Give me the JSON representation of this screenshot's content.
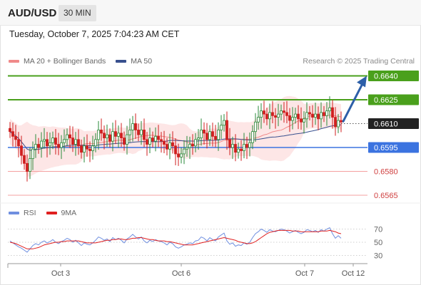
{
  "header": {
    "symbol": "AUD/USD",
    "timeframe": "30 MIN"
  },
  "timestamp": "Tuesday, October 7, 2025 7:04:23 AM CET",
  "legend": {
    "bb_label": "MA 20 + Bollinger Bands",
    "ma50_label": "MA 50",
    "credit": "Research © 2025 Trading Central"
  },
  "rsi_legend": {
    "rsi_label": "RSI",
    "ma_label": "9MA"
  },
  "colors": {
    "up": "#2a8a3a",
    "down": "#d01f1f",
    "candle_body_up": "#ffffff",
    "resistance": "#4aa01c",
    "support": "#3b73e0",
    "minor_support": "#f5a0a0",
    "current": "#222222",
    "arrow": "#2d5fa8",
    "bb_fill": "#fde2e2",
    "ma20": "#f08a8a",
    "ma50": "#38508e",
    "rsi": "#6f8fe0",
    "rsi_ma": "#e02020"
  },
  "chart_data": [
    {
      "type": "candlestick",
      "title": "AUD/USD 30 MIN",
      "y_range": [
        0.656,
        0.6645
      ],
      "x_ticks": [
        "Oct 3",
        "Oct 6",
        "Oct 7",
        "Oct 12"
      ],
      "price_levels": [
        {
          "label": "0.6640",
          "value": 0.664,
          "kind": "resistance"
        },
        {
          "label": "0.6625",
          "value": 0.6625,
          "kind": "resistance"
        },
        {
          "label": "0.6610",
          "value": 0.661,
          "kind": "current"
        },
        {
          "label": "0.6595",
          "value": 0.6595,
          "kind": "support"
        },
        {
          "label": "0.6580",
          "value": 0.658,
          "kind": "minor_support"
        },
        {
          "label": "0.6565",
          "value": 0.6565,
          "kind": "minor_support"
        }
      ],
      "forecast_target": 0.664,
      "closes": [
        0.6605,
        0.6602,
        0.66,
        0.6596,
        0.659,
        0.6585,
        0.658,
        0.6588,
        0.6594,
        0.6597,
        0.6595,
        0.6599,
        0.66,
        0.6596,
        0.6598,
        0.6601,
        0.6597,
        0.6595,
        0.6598,
        0.66,
        0.6603,
        0.6601,
        0.6597,
        0.66,
        0.6596,
        0.6592,
        0.6596,
        0.6594,
        0.6593,
        0.6596,
        0.66,
        0.6606,
        0.6604,
        0.6601,
        0.6603,
        0.6599,
        0.6605,
        0.6602,
        0.6604,
        0.6601,
        0.6597,
        0.6603,
        0.6606,
        0.661,
        0.6606,
        0.6603,
        0.6606,
        0.66,
        0.6597,
        0.6601,
        0.6599,
        0.6602,
        0.66,
        0.6599,
        0.6597,
        0.6594,
        0.6598,
        0.6596,
        0.6591,
        0.6589,
        0.6591,
        0.6594,
        0.6595,
        0.6597,
        0.6596,
        0.66,
        0.6601,
        0.6606,
        0.6604,
        0.66,
        0.6605,
        0.6602,
        0.66,
        0.6606,
        0.6609,
        0.6612,
        0.66,
        0.6595,
        0.6597,
        0.6592,
        0.6594,
        0.6593,
        0.6597,
        0.6595,
        0.6598,
        0.6605,
        0.6611,
        0.6614,
        0.6618,
        0.6616,
        0.6613,
        0.6617,
        0.6615,
        0.6614,
        0.6616,
        0.6618,
        0.6617,
        0.6615,
        0.6612,
        0.6614,
        0.6616,
        0.6613,
        0.6611,
        0.6613,
        0.6617,
        0.6616,
        0.6614,
        0.6616,
        0.6613,
        0.6617,
        0.6615,
        0.6618,
        0.662,
        0.6614,
        0.6608,
        0.6612,
        0.6611
      ],
      "rsi_ticks": [
        70,
        50,
        30
      ],
      "rsi": [
        52,
        49,
        46,
        43,
        41,
        38,
        35,
        40,
        45,
        48,
        46,
        50,
        52,
        49,
        51,
        54,
        50,
        48,
        51,
        53,
        56,
        54,
        50,
        53,
        49,
        45,
        49,
        47,
        46,
        49,
        53,
        58,
        56,
        53,
        55,
        51,
        57,
        54,
        56,
        53,
        49,
        55,
        58,
        62,
        58,
        55,
        58,
        52,
        49,
        53,
        51,
        54,
        52,
        51,
        49,
        46,
        50,
        48,
        43,
        41,
        43,
        46,
        47,
        49,
        48,
        52,
        53,
        58,
        56,
        52,
        57,
        54,
        52,
        58,
        61,
        64,
        52,
        47,
        49,
        44,
        46,
        45,
        49,
        47,
        50,
        57,
        63,
        66,
        70,
        68,
        65,
        69,
        67,
        66,
        68,
        70,
        69,
        67,
        64,
        66,
        68,
        65,
        63,
        65,
        69,
        68,
        66,
        68,
        65,
        69,
        67,
        70,
        72,
        63,
        56,
        60,
        56
      ],
      "rsi_ma": [
        50,
        49,
        48,
        46,
        44,
        42,
        40,
        40,
        40,
        41,
        42,
        44,
        46,
        47,
        48,
        49,
        50,
        50,
        51,
        51,
        52,
        52,
        52,
        52,
        52,
        51,
        50,
        49,
        49,
        49,
        49,
        50,
        51,
        52,
        53,
        53,
        54,
        54,
        55,
        55,
        54,
        54,
        55,
        56,
        56,
        57,
        57,
        56,
        55,
        54,
        54,
        53,
        52,
        52,
        52,
        51,
        51,
        50,
        49,
        48,
        47,
        46,
        46,
        46,
        46,
        47,
        48,
        49,
        50,
        51,
        52,
        53,
        54,
        55,
        56,
        57,
        56,
        55,
        54,
        53,
        51,
        50,
        49,
        48,
        48,
        49,
        51,
        54,
        57,
        60,
        63,
        65,
        66,
        67,
        68,
        68,
        68,
        68,
        68,
        67,
        67,
        67,
        66,
        66,
        66,
        66,
        66,
        66,
        66,
        67,
        67,
        67,
        68,
        67,
        66,
        64,
        63
      ]
    }
  ]
}
